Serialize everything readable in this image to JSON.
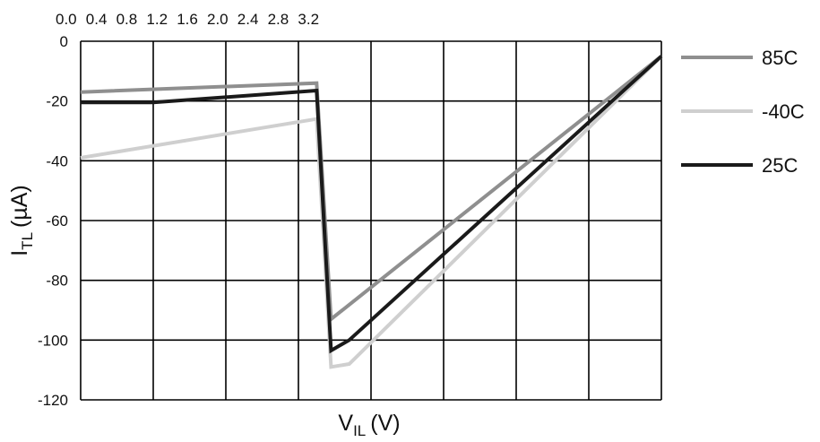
{
  "chart_data": {
    "type": "line",
    "xlabel": {
      "main": "V",
      "sub": "IL",
      "unit": "(V)"
    },
    "ylabel": {
      "main": "I",
      "sub": "TL",
      "unit": "(µA)"
    },
    "x_tick_labels": [
      "0.0",
      "0.4",
      "0.8",
      "1.2",
      "1.6",
      "2.0",
      "2.4",
      "2.8",
      "3.2"
    ],
    "y_ticks": [
      0,
      -20,
      -40,
      -60,
      -80,
      -100,
      -120
    ],
    "xlim": [
      0,
      3.2
    ],
    "ylim": [
      -120,
      0
    ],
    "grid": true,
    "legend_position": "right",
    "series": [
      {
        "name": "85C",
        "color": "#8f8f8f",
        "x": [
          0.0,
          1.3,
          1.38,
          3.2
        ],
        "y": [
          -17,
          -14,
          -93,
          -5
        ]
      },
      {
        "name": "-40C",
        "color": "#cfcfcf",
        "x": [
          0.0,
          1.3,
          1.38,
          1.48,
          3.2
        ],
        "y": [
          -39,
          -26,
          -109,
          -108,
          -5
        ]
      },
      {
        "name": "25C",
        "color": "#1a1a1a",
        "x": [
          0.0,
          0.4,
          1.3,
          1.38,
          1.48,
          3.2
        ],
        "y": [
          -20.5,
          -20.5,
          -16.5,
          -103.5,
          -100,
          -5
        ]
      }
    ]
  }
}
